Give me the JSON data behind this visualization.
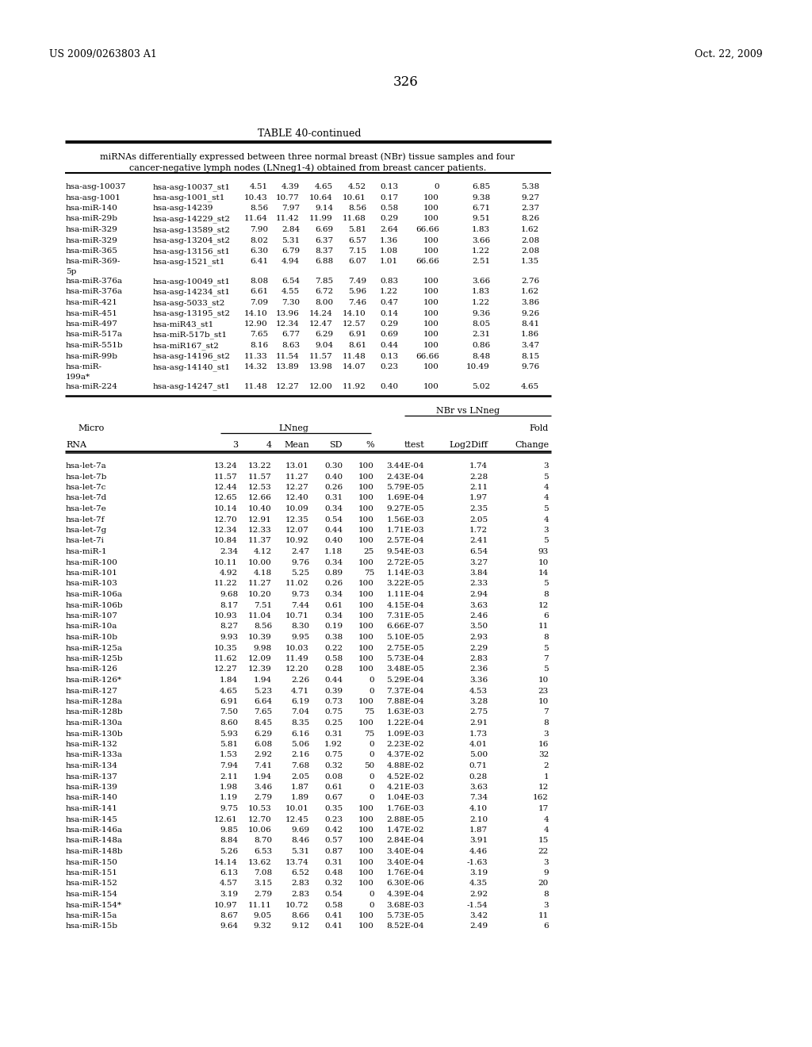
{
  "patent_left": "US 2009/0263803 A1",
  "patent_right": "Oct. 22, 2009",
  "page_num": "326",
  "table_title": "TABLE 40-continued",
  "table_desc_line1": "miRNAs differentially expressed between three normal breast (NBr) tissue samples and four",
  "table_desc_line2": "cancer-negative lymph nodes (LNneg1-4) obtained from breast cancer patients.",
  "top_rows": [
    [
      "hsa-asg-10037",
      "hsa-asg-10037_st1",
      "4.51",
      "4.39",
      "4.65",
      "4.52",
      "0.13",
      "0",
      "6.85",
      "5.38"
    ],
    [
      "hsa-asg-1001",
      "hsa-asg-1001_st1",
      "10.43",
      "10.77",
      "10.64",
      "10.61",
      "0.17",
      "100",
      "9.38",
      "9.27"
    ],
    [
      "hsa-miR-140",
      "hsa-asg-14239",
      "8.56",
      "7.97",
      "9.14",
      "8.56",
      "0.58",
      "100",
      "6.71",
      "2.37"
    ],
    [
      "hsa-miR-29b",
      "hsa-asg-14229_st2",
      "11.64",
      "11.42",
      "11.99",
      "11.68",
      "0.29",
      "100",
      "9.51",
      "8.26"
    ],
    [
      "hsa-miR-329",
      "hsa-asg-13589_st2",
      "7.90",
      "2.84",
      "6.69",
      "5.81",
      "2.64",
      "66.66",
      "1.83",
      "1.62"
    ],
    [
      "hsa-miR-329",
      "hsa-asg-13204_st2",
      "8.02",
      "5.31",
      "6.37",
      "6.57",
      "1.36",
      "100",
      "3.66",
      "2.08"
    ],
    [
      "hsa-miR-365",
      "hsa-asg-13156_st1",
      "6.30",
      "6.79",
      "8.37",
      "7.15",
      "1.08",
      "100",
      "1.22",
      "2.08"
    ],
    [
      "hsa-miR-369-5p",
      "hsa-asg-1521_st1",
      "6.41",
      "4.94",
      "6.88",
      "6.07",
      "1.01",
      "66.66",
      "2.51",
      "1.35"
    ],
    [
      "hsa-miR-376a",
      "hsa-asg-10049_st1",
      "8.08",
      "6.54",
      "7.85",
      "7.49",
      "0.83",
      "100",
      "3.66",
      "2.76"
    ],
    [
      "hsa-miR-376a",
      "hsa-asg-14234_st1",
      "6.61",
      "4.55",
      "6.72",
      "5.96",
      "1.22",
      "100",
      "1.83",
      "1.62"
    ],
    [
      "hsa-miR-421",
      "hsa-asg-5033_st2",
      "7.09",
      "7.30",
      "8.00",
      "7.46",
      "0.47",
      "100",
      "1.22",
      "3.86"
    ],
    [
      "hsa-miR-451",
      "hsa-asg-13195_st2",
      "14.10",
      "13.96",
      "14.24",
      "14.10",
      "0.14",
      "100",
      "9.36",
      "9.26"
    ],
    [
      "hsa-miR-497",
      "hsa-miR43_st1",
      "12.90",
      "12.34",
      "12.47",
      "12.57",
      "0.29",
      "100",
      "8.05",
      "8.41"
    ],
    [
      "hsa-miR-517a",
      "hsa-miR-517b_st1",
      "7.65",
      "6.77",
      "6.29",
      "6.91",
      "0.69",
      "100",
      "2.31",
      "1.86"
    ],
    [
      "hsa-miR-551b",
      "hsa-miR167_st2",
      "8.16",
      "8.63",
      "9.04",
      "8.61",
      "0.44",
      "100",
      "0.86",
      "3.47"
    ],
    [
      "hsa-miR-99b",
      "hsa-asg-14196_st2",
      "11.33",
      "11.54",
      "11.57",
      "11.48",
      "0.13",
      "66.66",
      "8.48",
      "8.15"
    ],
    [
      "hsa-miR-199a*",
      "hsa-asg-14140_st1",
      "14.32",
      "13.89",
      "13.98",
      "14.07",
      "0.23",
      "100",
      "10.49",
      "9.76"
    ],
    [
      "hsa-miR-224",
      "hsa-asg-14247_st1",
      "11.48",
      "12.27",
      "12.00",
      "11.92",
      "0.40",
      "100",
      "5.02",
      "4.65"
    ]
  ],
  "bottom_rows": [
    [
      "hsa-let-7a",
      "13.24",
      "13.22",
      "13.01",
      "0.30",
      "100",
      "3.44E-04",
      "1.74",
      "3"
    ],
    [
      "hsa-let-7b",
      "11.57",
      "11.57",
      "11.27",
      "0.40",
      "100",
      "2.43E-04",
      "2.28",
      "5"
    ],
    [
      "hsa-let-7c",
      "12.44",
      "12.53",
      "12.27",
      "0.26",
      "100",
      "5.79E-05",
      "2.11",
      "4"
    ],
    [
      "hsa-let-7d",
      "12.65",
      "12.66",
      "12.40",
      "0.31",
      "100",
      "1.69E-04",
      "1.97",
      "4"
    ],
    [
      "hsa-let-7e",
      "10.14",
      "10.40",
      "10.09",
      "0.34",
      "100",
      "9.27E-05",
      "2.35",
      "5"
    ],
    [
      "hsa-let-7f",
      "12.70",
      "12.91",
      "12.35",
      "0.54",
      "100",
      "1.56E-03",
      "2.05",
      "4"
    ],
    [
      "hsa-let-7g",
      "12.34",
      "12.33",
      "12.07",
      "0.44",
      "100",
      "1.71E-03",
      "1.72",
      "3"
    ],
    [
      "hsa-let-7i",
      "10.84",
      "11.37",
      "10.92",
      "0.40",
      "100",
      "2.57E-04",
      "2.41",
      "5"
    ],
    [
      "hsa-miR-1",
      "2.34",
      "4.12",
      "2.47",
      "1.18",
      "25",
      "9.54E-03",
      "6.54",
      "93"
    ],
    [
      "hsa-miR-100",
      "10.11",
      "10.00",
      "9.76",
      "0.34",
      "100",
      "2.72E-05",
      "3.27",
      "10"
    ],
    [
      "hsa-miR-101",
      "4.92",
      "4.18",
      "5.25",
      "0.89",
      "75",
      "1.14E-03",
      "3.84",
      "14"
    ],
    [
      "hsa-miR-103",
      "11.22",
      "11.27",
      "11.02",
      "0.26",
      "100",
      "3.22E-05",
      "2.33",
      "5"
    ],
    [
      "hsa-miR-106a",
      "9.68",
      "10.20",
      "9.73",
      "0.34",
      "100",
      "1.11E-04",
      "2.94",
      "8"
    ],
    [
      "hsa-miR-106b",
      "8.17",
      "7.51",
      "7.44",
      "0.61",
      "100",
      "4.15E-04",
      "3.63",
      "12"
    ],
    [
      "hsa-miR-107",
      "10.93",
      "11.04",
      "10.71",
      "0.34",
      "100",
      "7.31E-05",
      "2.46",
      "6"
    ],
    [
      "hsa-miR-10a",
      "8.27",
      "8.56",
      "8.30",
      "0.19",
      "100",
      "6.66E-07",
      "3.50",
      "11"
    ],
    [
      "hsa-miR-10b",
      "9.93",
      "10.39",
      "9.95",
      "0.38",
      "100",
      "5.10E-05",
      "2.93",
      "8"
    ],
    [
      "hsa-miR-125a",
      "10.35",
      "9.98",
      "10.03",
      "0.22",
      "100",
      "2.75E-05",
      "2.29",
      "5"
    ],
    [
      "hsa-miR-125b",
      "11.62",
      "12.09",
      "11.49",
      "0.58",
      "100",
      "5.73E-04",
      "2.83",
      "7"
    ],
    [
      "hsa-miR-126",
      "12.27",
      "12.39",
      "12.20",
      "0.28",
      "100",
      "3.48E-05",
      "2.36",
      "5"
    ],
    [
      "hsa-miR-126*",
      "1.84",
      "1.94",
      "2.26",
      "0.44",
      "0",
      "5.29E-04",
      "3.36",
      "10"
    ],
    [
      "hsa-miR-127",
      "4.65",
      "5.23",
      "4.71",
      "0.39",
      "0",
      "7.37E-04",
      "4.53",
      "23"
    ],
    [
      "hsa-miR-128a",
      "6.91",
      "6.64",
      "6.19",
      "0.73",
      "100",
      "7.88E-04",
      "3.28",
      "10"
    ],
    [
      "hsa-miR-128b",
      "7.50",
      "7.65",
      "7.04",
      "0.75",
      "75",
      "1.63E-03",
      "2.75",
      "7"
    ],
    [
      "hsa-miR-130a",
      "8.60",
      "8.45",
      "8.35",
      "0.25",
      "100",
      "1.22E-04",
      "2.91",
      "8"
    ],
    [
      "hsa-miR-130b",
      "5.93",
      "6.29",
      "6.16",
      "0.31",
      "75",
      "1.09E-03",
      "1.73",
      "3"
    ],
    [
      "hsa-miR-132",
      "5.81",
      "6.08",
      "5.06",
      "1.92",
      "0",
      "2.23E-02",
      "4.01",
      "16"
    ],
    [
      "hsa-miR-133a",
      "1.53",
      "2.92",
      "2.16",
      "0.75",
      "0",
      "4.37E-02",
      "5.00",
      "32"
    ],
    [
      "hsa-miR-134",
      "7.94",
      "7.41",
      "7.68",
      "0.32",
      "50",
      "4.88E-02",
      "0.71",
      "2"
    ],
    [
      "hsa-miR-137",
      "2.11",
      "1.94",
      "2.05",
      "0.08",
      "0",
      "4.52E-02",
      "0.28",
      "1"
    ],
    [
      "hsa-miR-139",
      "1.98",
      "3.46",
      "1.87",
      "0.61",
      "0",
      "4.21E-03",
      "3.63",
      "12"
    ],
    [
      "hsa-miR-140",
      "1.19",
      "2.79",
      "1.89",
      "0.67",
      "0",
      "1.04E-03",
      "7.34",
      "162"
    ],
    [
      "hsa-miR-141",
      "9.75",
      "10.53",
      "10.01",
      "0.35",
      "100",
      "1.76E-03",
      "4.10",
      "17"
    ],
    [
      "hsa-miR-145",
      "12.61",
      "12.70",
      "12.45",
      "0.23",
      "100",
      "2.88E-05",
      "2.10",
      "4"
    ],
    [
      "hsa-miR-146a",
      "9.85",
      "10.06",
      "9.69",
      "0.42",
      "100",
      "1.47E-02",
      "1.87",
      "4"
    ],
    [
      "hsa-miR-148a",
      "8.84",
      "8.70",
      "8.46",
      "0.57",
      "100",
      "2.84E-04",
      "3.91",
      "15"
    ],
    [
      "hsa-miR-148b",
      "5.26",
      "6.53",
      "5.31",
      "0.87",
      "100",
      "3.40E-04",
      "4.46",
      "22"
    ],
    [
      "hsa-miR-150",
      "14.14",
      "13.62",
      "13.74",
      "0.31",
      "100",
      "3.40E-04",
      "-1.63",
      "3"
    ],
    [
      "hsa-miR-151",
      "6.13",
      "7.08",
      "6.52",
      "0.48",
      "100",
      "1.76E-04",
      "3.19",
      "9"
    ],
    [
      "hsa-miR-152",
      "4.57",
      "3.15",
      "2.83",
      "0.32",
      "100",
      "6.30E-06",
      "4.35",
      "20"
    ],
    [
      "hsa-miR-154",
      "3.19",
      "2.79",
      "2.83",
      "0.54",
      "0",
      "4.39E-04",
      "2.92",
      "8"
    ],
    [
      "hsa-miR-154*",
      "10.97",
      "11.11",
      "10.72",
      "0.58",
      "0",
      "3.68E-03",
      "-1.54",
      "3"
    ],
    [
      "hsa-miR-15a",
      "8.67",
      "9.05",
      "8.66",
      "0.41",
      "100",
      "5.73E-05",
      "3.42",
      "11"
    ],
    [
      "hsa-miR-15b",
      "9.64",
      "9.32",
      "9.12",
      "0.41",
      "100",
      "8.52E-04",
      "2.49",
      "6"
    ]
  ],
  "bg_color": "#ffffff",
  "text_color": "#000000"
}
